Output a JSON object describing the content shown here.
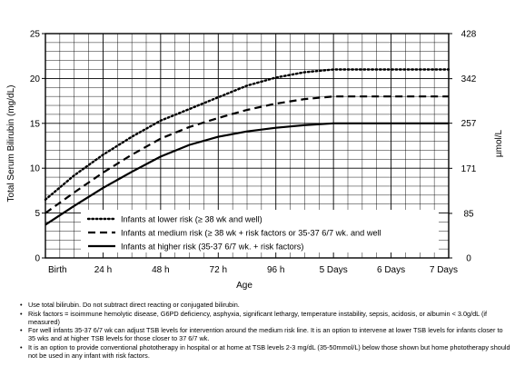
{
  "chart_data": {
    "type": "line",
    "xlabel": "Age",
    "ylabel": "Total Serum Bilirubin (mg/dL)",
    "y2label": "µmol/L",
    "categories": [
      "Birth",
      "24 h",
      "48 h",
      "72 h",
      "96 h",
      "5 Days",
      "6 Days",
      "7 Days"
    ],
    "x_hours": [
      0,
      24,
      48,
      72,
      96,
      120,
      144,
      168
    ],
    "ylim": [
      0,
      25
    ],
    "yticks": [
      0,
      5,
      10,
      15,
      20,
      25
    ],
    "y2ticks": [
      {
        "value": 0,
        "label": "0"
      },
      {
        "value": 85,
        "label": "85"
      },
      {
        "value": 171,
        "label": "171"
      },
      {
        "value": 257,
        "label": "257"
      },
      {
        "value": 342,
        "label": "342"
      },
      {
        "value": 428,
        "label": "428"
      }
    ],
    "grid": true,
    "legend_position": "bottom-left",
    "series": [
      {
        "name": "Infants at lower risk (≥ 38 wk and well)",
        "dash": "dotted",
        "x": [
          0,
          12,
          24,
          36,
          48,
          60,
          72,
          84,
          96,
          108,
          120,
          144,
          168
        ],
        "y": [
          6.5,
          9.2,
          11.5,
          13.5,
          15.3,
          16.6,
          17.9,
          19.2,
          20.1,
          20.7,
          21,
          21,
          21
        ]
      },
      {
        "name": "Infants at medium risk (≥ 38 wk + risk factors or 35-37 6/7 wk. and well",
        "dash": "dashed",
        "x": [
          0,
          12,
          24,
          36,
          48,
          60,
          72,
          84,
          96,
          108,
          120,
          144,
          168
        ],
        "y": [
          5,
          7.3,
          9.5,
          11.5,
          13.3,
          14.6,
          15.6,
          16.5,
          17.2,
          17.7,
          18,
          18,
          18
        ]
      },
      {
        "name": "Infants at higher risk (35-37 6/7 wk. + risk factors)",
        "dash": "solid",
        "x": [
          0,
          12,
          24,
          36,
          48,
          60,
          72,
          84,
          96,
          108,
          120,
          144,
          168
        ],
        "y": [
          3.7,
          5.8,
          7.8,
          9.6,
          11.3,
          12.6,
          13.5,
          14.1,
          14.5,
          14.8,
          15,
          15,
          15
        ]
      }
    ]
  },
  "notes": [
    "Use total bilirubin.  Do not subtract direct reacting or conjugated bilirubin.",
    "Risk factors = isoimmune hemolytic disease, G6PD deficiency, asphyxia, significant lethargy, temperature instability, sepsis, acidosis, or albumin < 3.0g/dL (if measured)",
    "For well infants 35-37 6/7 wk can adjust TSB levels for intervention around the medium risk line.  It is an option to intervene at lower TSB levels for infants closer to 35 wks and at higher TSB levels for those closer to 37 6/7 wk.",
    "It is an option to provide conventional phototherapy in hospital or at home at TSB levels 2-3 mg/dL (35-50mmol/L) below those shown but home phototherapy should not be used in any infant with risk factors."
  ],
  "bullet": "•"
}
